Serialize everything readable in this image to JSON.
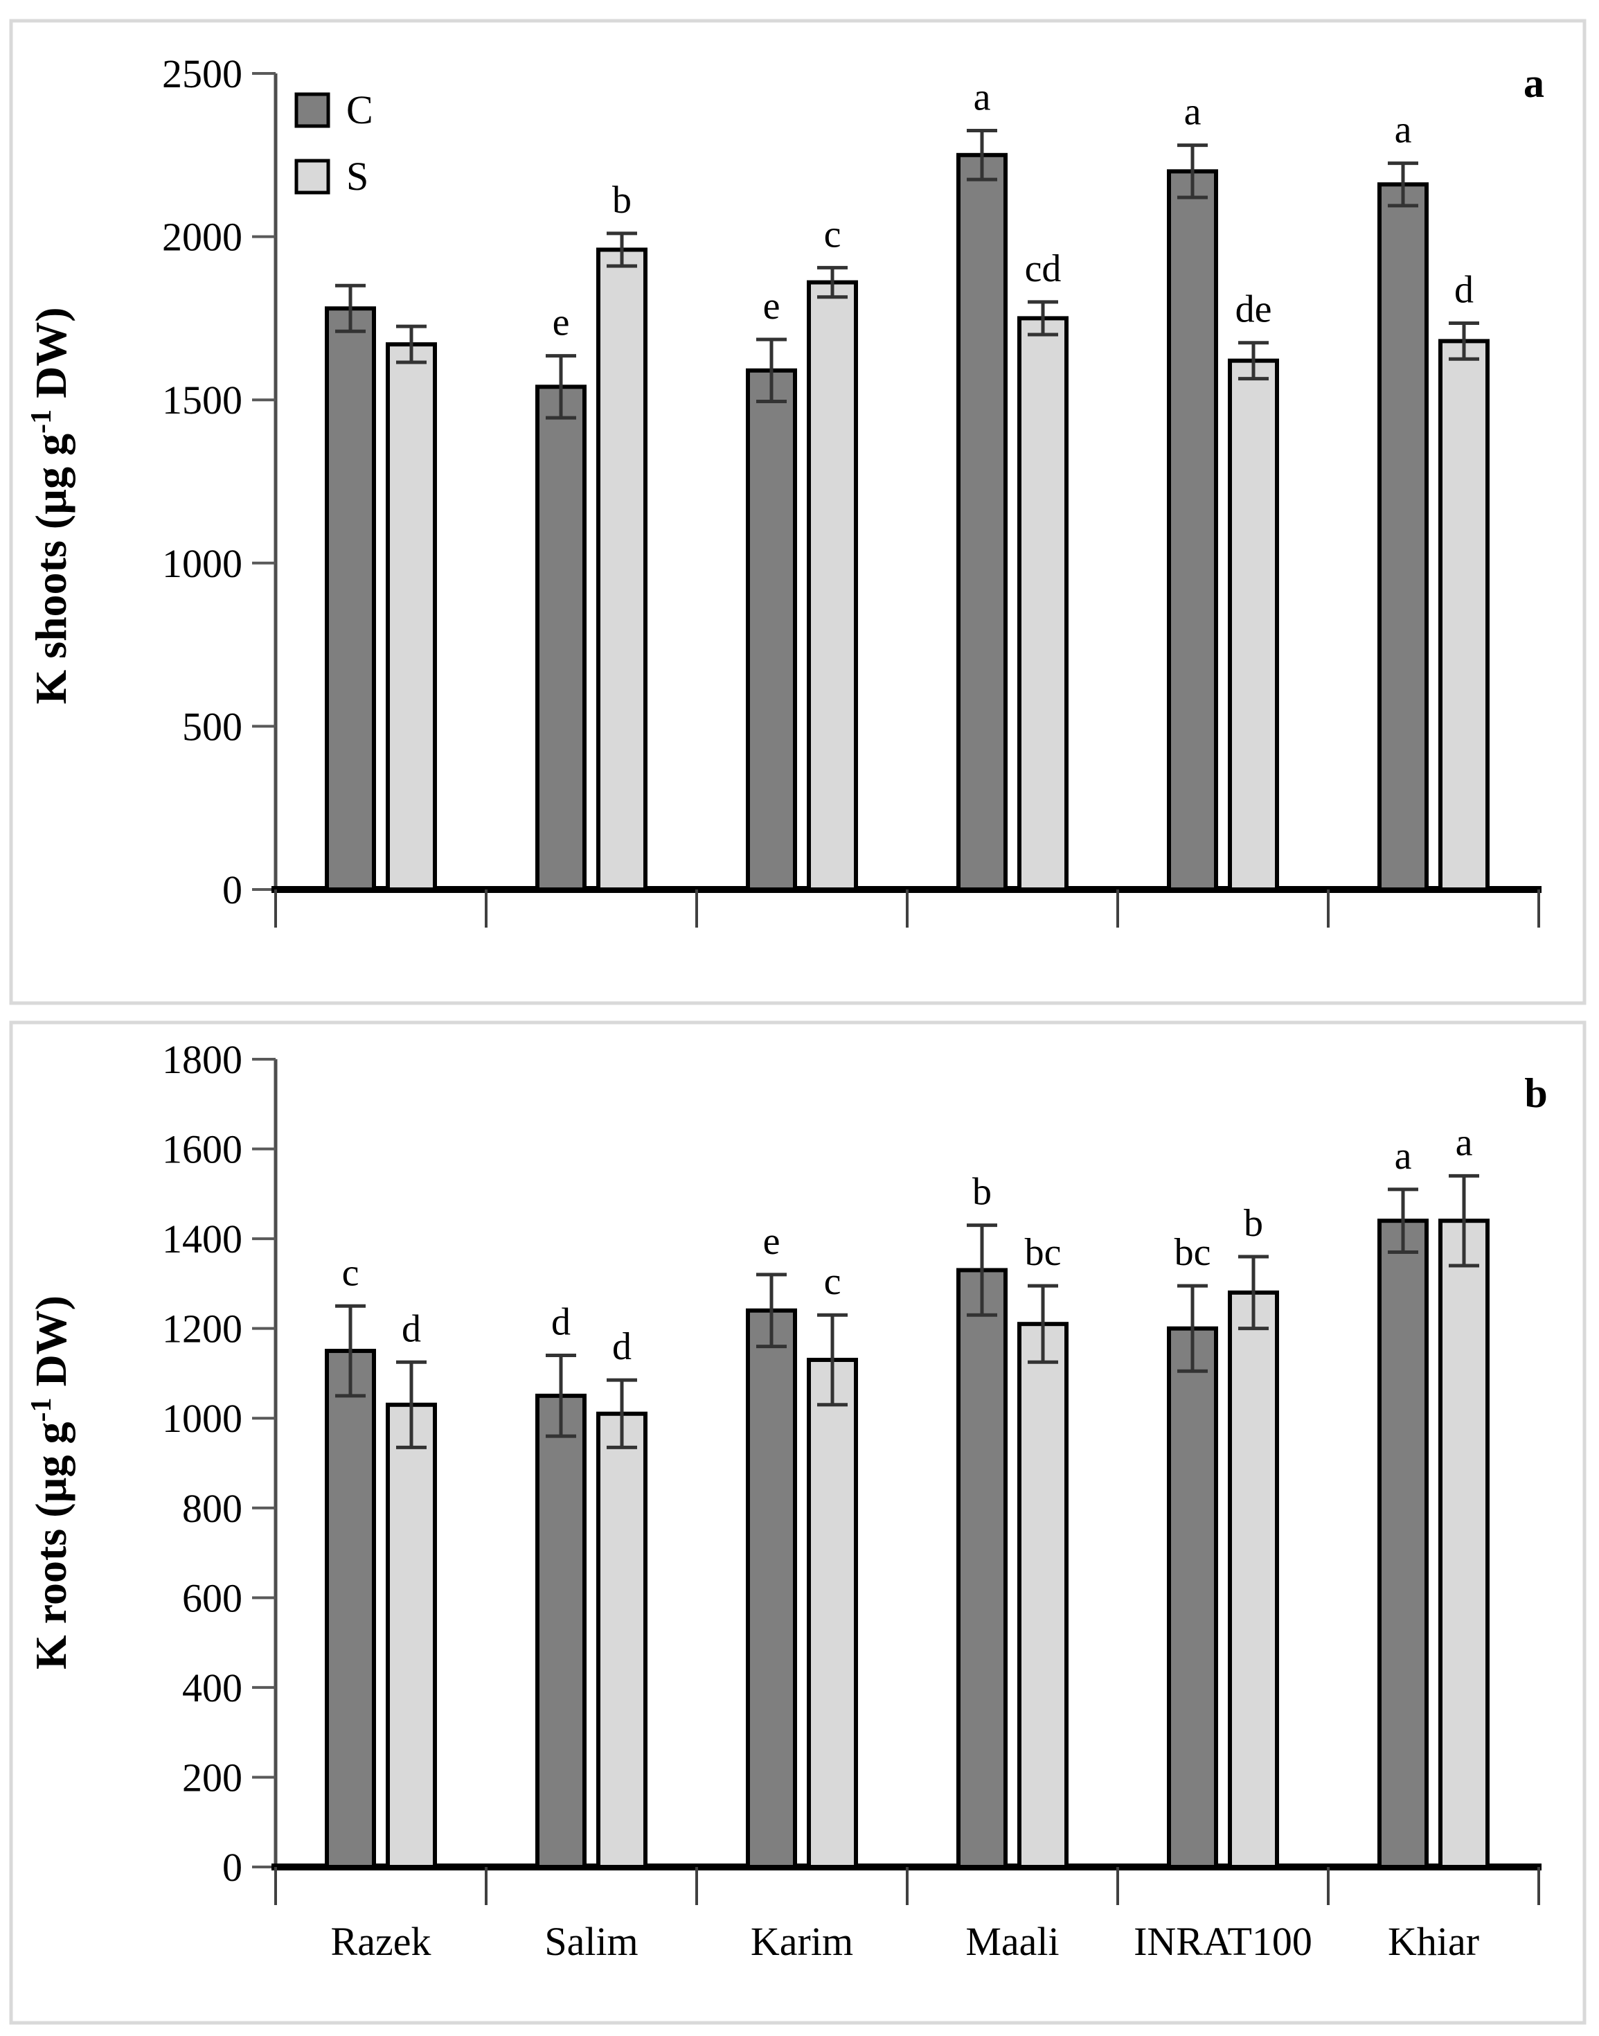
{
  "chart_data": [
    {
      "type": "bar",
      "panel_label": "a",
      "title": "",
      "xlabel": "",
      "ylabel": "K shoots (µg g⁻¹ DW)",
      "ylim": [
        0,
        2500
      ],
      "ytick_step": 500,
      "yticks": [
        0,
        500,
        1000,
        1500,
        2000,
        2500
      ],
      "grid": false,
      "legend_position": "top-left",
      "show_category_labels": false,
      "categories": [
        "Razek",
        "Salim",
        "Karim",
        "Maali",
        "INRAT100",
        "Khiar"
      ],
      "series": [
        {
          "name": "C",
          "color": "#7f7f7f",
          "values": [
            1780,
            1540,
            1590,
            2250,
            2200,
            2160
          ],
          "errors": [
            70,
            95,
            95,
            75,
            80,
            65
          ],
          "letters": [
            "",
            "e",
            "e",
            "a",
            "a",
            "a"
          ]
        },
        {
          "name": "S",
          "color": "#d9d9d9",
          "values": [
            1670,
            1960,
            1860,
            1750,
            1620,
            1680
          ],
          "errors": [
            55,
            50,
            45,
            50,
            55,
            55
          ],
          "letters": [
            "",
            "b",
            "c",
            "cd",
            "de",
            "d"
          ]
        }
      ],
      "legend": {
        "items": [
          {
            "label": "C",
            "color": "#7f7f7f"
          },
          {
            "label": "S",
            "color": "#d9d9d9"
          }
        ]
      }
    },
    {
      "type": "bar",
      "panel_label": "b",
      "title": "",
      "xlabel": "",
      "ylabel": "K roots (µg g⁻¹ DW)",
      "ylim": [
        0,
        1800
      ],
      "ytick_step": 200,
      "yticks": [
        0,
        200,
        400,
        600,
        800,
        1000,
        1200,
        1400,
        1600,
        1800
      ],
      "grid": false,
      "legend_position": null,
      "show_category_labels": true,
      "categories": [
        "Razek",
        "Salim",
        "Karim",
        "Maali",
        "INRAT100",
        "Khiar"
      ],
      "series": [
        {
          "name": "C",
          "color": "#7f7f7f",
          "values": [
            1150,
            1050,
            1240,
            1330,
            1200,
            1440
          ],
          "errors": [
            100,
            90,
            80,
            100,
            95,
            70
          ],
          "letters": [
            "c",
            "d",
            "e",
            "b",
            "bc",
            "a"
          ]
        },
        {
          "name": "S",
          "color": "#d9d9d9",
          "values": [
            1030,
            1010,
            1130,
            1210,
            1280,
            1440
          ],
          "errors": [
            95,
            75,
            100,
            85,
            80,
            100
          ],
          "letters": [
            "d",
            "d",
            "c",
            "bc",
            "b",
            "a"
          ]
        }
      ],
      "legend": null
    }
  ],
  "style_colors": {
    "bar_outline": "#000000",
    "error_bar": "#333333",
    "axis_line": "#4d4d4d",
    "baseline": "#000000",
    "panel_border": "#d9d9d9"
  }
}
